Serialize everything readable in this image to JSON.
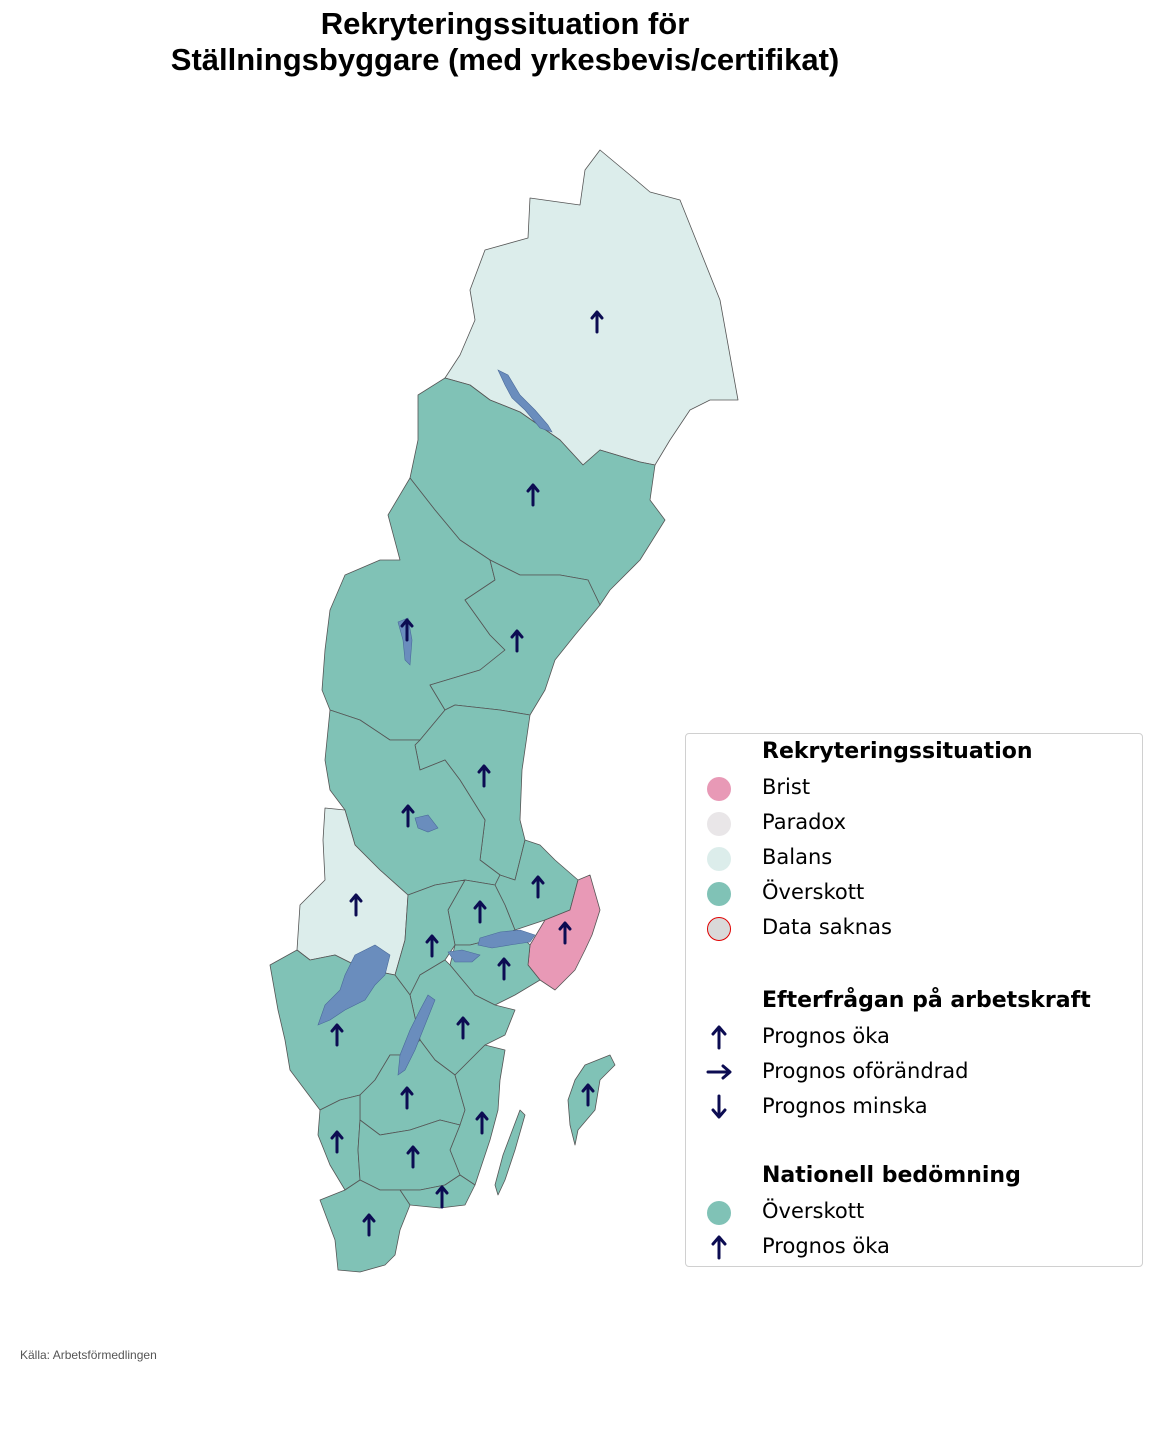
{
  "title_line1": "Rekryteringssituation för",
  "title_line2": "Ställningsbyggare (med yrkesbevis/certifikat)",
  "colors": {
    "brist": "#e899b6",
    "paradox": "#e9e6e8",
    "balans": "#dcedeb",
    "overskott": "#80c2b6",
    "data_saknas": "#d9d9d9",
    "data_saknas_border": "#e00000",
    "arrow": "#0c0c52",
    "water": "#6a8dbd"
  },
  "legend": {
    "section1_title": "Rekryteringssituation",
    "brist": "Brist",
    "paradox": "Paradox",
    "balans": "Balans",
    "overskott": "Överskott",
    "data_saknas": "Data saknas",
    "section2_title": "Efterfrågan på arbetskraft",
    "prognos_oka": "Prognos öka",
    "prognos_oforandrad": "Prognos oförändrad",
    "prognos_minska": "Prognos minska",
    "section3_title": "Nationell bedömning",
    "nat_status": "Överskott",
    "nat_prognos": "Prognos öka"
  },
  "regions": [
    {
      "name": "Norrbotten",
      "status": "balans",
      "prognos": "oka"
    },
    {
      "name": "Västerbotten",
      "status": "overskott",
      "prognos": "oka"
    },
    {
      "name": "Jämtland",
      "status": "overskott",
      "prognos": "oka"
    },
    {
      "name": "Västernorrland",
      "status": "overskott",
      "prognos": "oka"
    },
    {
      "name": "Gävleborg",
      "status": "overskott",
      "prognos": "oka"
    },
    {
      "name": "Dalarna",
      "status": "overskott",
      "prognos": "oka"
    },
    {
      "name": "Värmland",
      "status": "balans",
      "prognos": "oka"
    },
    {
      "name": "Uppsala",
      "status": "overskott",
      "prognos": "oka"
    },
    {
      "name": "Stockholm",
      "status": "brist",
      "prognos": "oka"
    },
    {
      "name": "Västmanland",
      "status": "overskott",
      "prognos": "oka"
    },
    {
      "name": "Örebro",
      "status": "overskott",
      "prognos": "oka"
    },
    {
      "name": "Södermanland",
      "status": "overskott",
      "prognos": "oka"
    },
    {
      "name": "Östergötland",
      "status": "overskott",
      "prognos": "oka"
    },
    {
      "name": "Västra Götaland",
      "status": "overskott",
      "prognos": "oka"
    },
    {
      "name": "Jönköping",
      "status": "overskott",
      "prognos": "oka"
    },
    {
      "name": "Kalmar",
      "status": "overskott",
      "prognos": "oka"
    },
    {
      "name": "Gotland",
      "status": "overskott",
      "prognos": "oka"
    },
    {
      "name": "Halland",
      "status": "overskott",
      "prognos": "oka"
    },
    {
      "name": "Kronoberg",
      "status": "overskott",
      "prognos": "oka"
    },
    {
      "name": "Blekinge",
      "status": "overskott",
      "prognos": "oka"
    },
    {
      "name": "Skåne",
      "status": "overskott",
      "prognos": "oka"
    }
  ],
  "source": "Källa: Arbetsförmedlingen"
}
